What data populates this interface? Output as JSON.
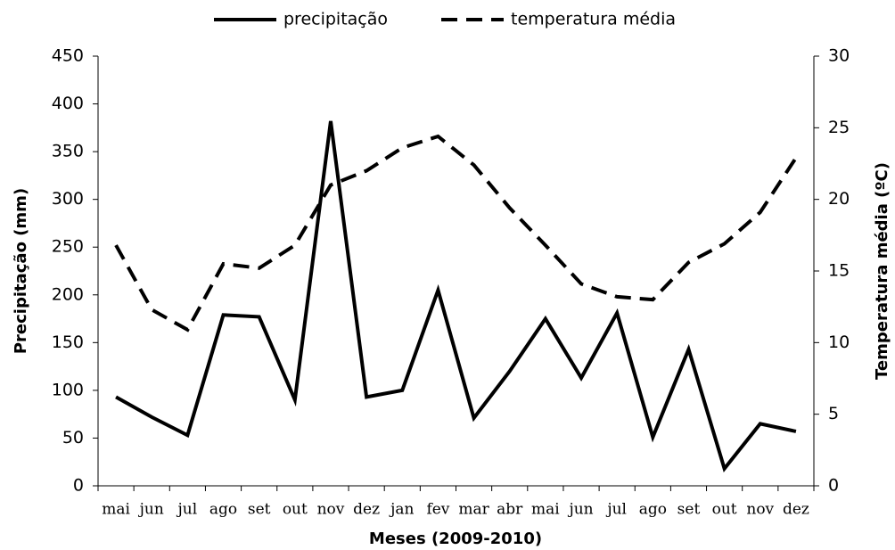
{
  "chart_data": {
    "type": "line",
    "xlabel": "Meses (2009-2010)",
    "ylabel": "Precipitação (mm)",
    "y2label": "Temperatura média (ºC)",
    "categories": [
      "mai",
      "jun",
      "jul",
      "ago",
      "set",
      "out",
      "nov",
      "dez",
      "jan",
      "fev",
      "mar",
      "abr",
      "mai",
      "jun",
      "jul",
      "ago",
      "set",
      "out",
      "nov",
      "dez"
    ],
    "series": [
      {
        "name": "precipitação",
        "color": "#000000",
        "dash": "solid",
        "values": [
          93,
          72,
          53,
          179,
          177,
          90,
          382,
          93,
          100,
          205,
          71,
          120,
          175,
          113,
          181,
          51,
          143,
          18,
          65,
          57
        ]
      },
      {
        "name": "temperatura média",
        "color": "#000000",
        "dash": "dashed",
        "axis": "y2",
        "values": [
          16.8,
          12.3,
          10.9,
          15.5,
          15.2,
          16.8,
          21.0,
          22.0,
          23.6,
          24.4,
          22.4,
          19.4,
          16.8,
          14.1,
          13.2,
          13.0,
          15.6,
          16.9,
          19.1,
          22.9
        ]
      }
    ],
    "ylim": [
      0,
      450
    ],
    "yticks": [
      0,
      50,
      100,
      150,
      200,
      250,
      300,
      350,
      400,
      450
    ],
    "y2lim": [
      0,
      30
    ],
    "y2ticks": [
      0,
      5,
      10,
      15,
      20,
      25,
      30
    ],
    "legend": "top",
    "grid": false
  }
}
